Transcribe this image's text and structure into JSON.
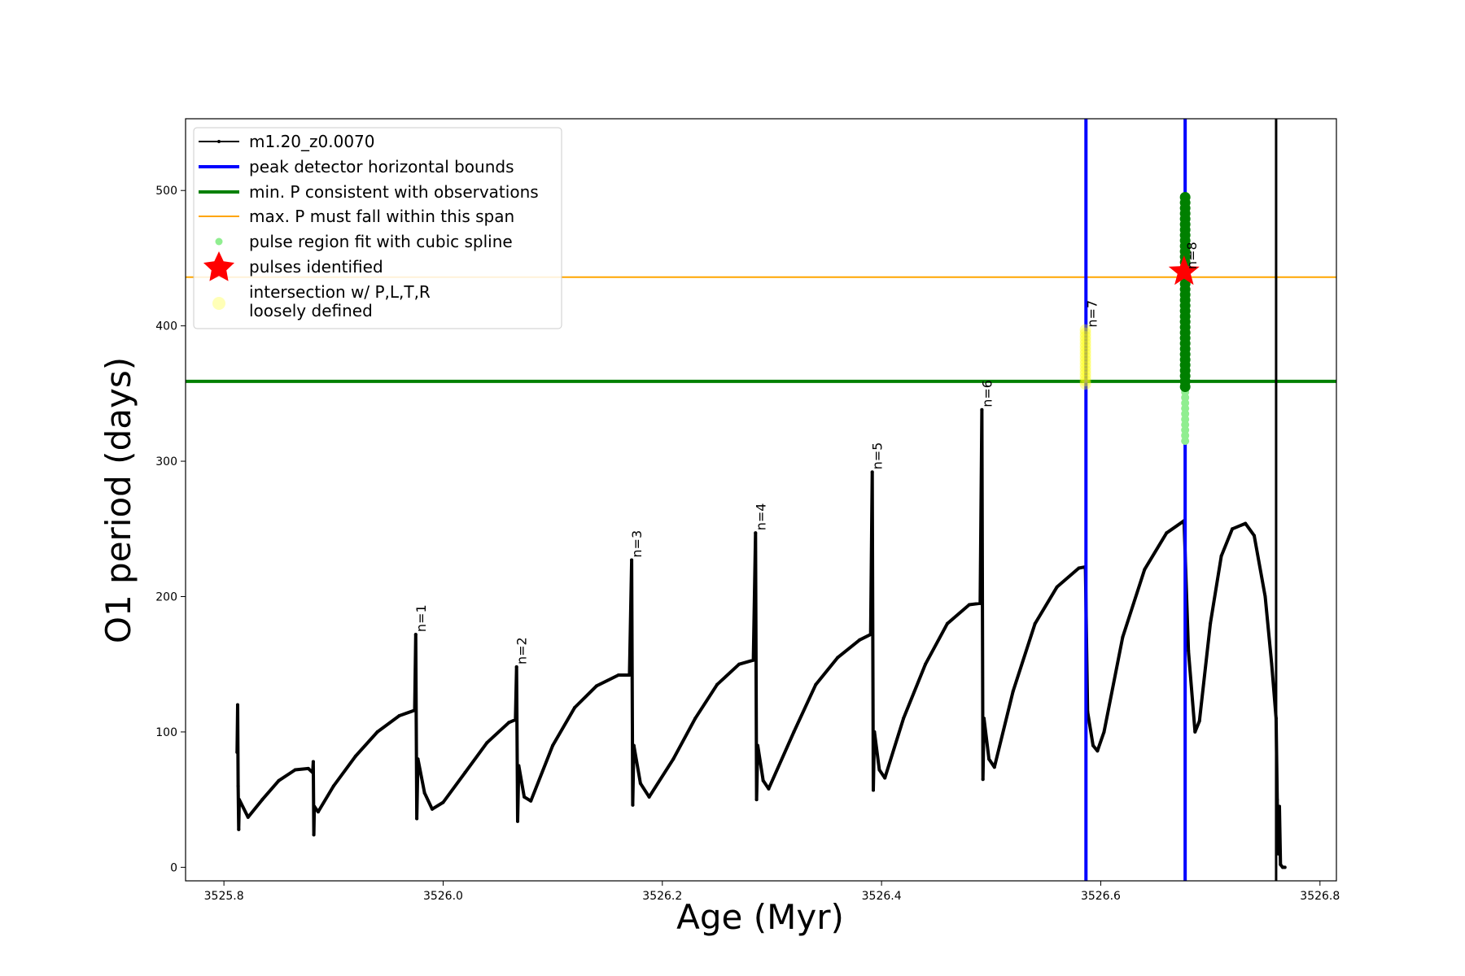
{
  "chart_data": {
    "type": "line",
    "xlabel": "Age (Myr)",
    "ylabel": "O1 period (days)",
    "xlim": [
      3525.765,
      3526.815
    ],
    "ylim": [
      -10,
      553
    ],
    "xticks": [
      3525.8,
      3526.0,
      3526.2,
      3526.4,
      3526.6,
      3526.8
    ],
    "xtick_labels": [
      "3525.8",
      "3526.0",
      "3526.2",
      "3526.4",
      "3526.6",
      "3526.8"
    ],
    "yticks": [
      0,
      100,
      200,
      300,
      400,
      500
    ],
    "ytick_labels": [
      "0",
      "100",
      "200",
      "300",
      "400",
      "500"
    ],
    "grid": false,
    "legend_position": "top-left",
    "series": [
      {
        "name": "m1.20_z0.0070",
        "color": "#000000",
        "marker": "dot",
        "points": [
          [
            3525.812,
            85
          ],
          [
            3525.8125,
            120
          ],
          [
            3525.813,
            60
          ],
          [
            3525.8135,
            28
          ],
          [
            3525.814,
            50
          ],
          [
            3525.822,
            37
          ],
          [
            3525.835,
            50
          ],
          [
            3525.85,
            64
          ],
          [
            3525.865,
            72
          ],
          [
            3525.877,
            73
          ],
          [
            3525.881,
            70
          ],
          [
            3525.8815,
            78
          ],
          [
            3525.882,
            24
          ],
          [
            3525.8825,
            45
          ],
          [
            3525.886,
            41
          ],
          [
            3525.9,
            60
          ],
          [
            3525.92,
            82
          ],
          [
            3525.94,
            100
          ],
          [
            3525.96,
            112
          ],
          [
            3525.974,
            116
          ],
          [
            3525.975,
            172
          ],
          [
            3525.976,
            36
          ],
          [
            3525.977,
            80
          ],
          [
            3525.983,
            55
          ],
          [
            3525.99,
            43
          ],
          [
            3526.0,
            48
          ],
          [
            3526.02,
            70
          ],
          [
            3526.04,
            92
          ],
          [
            3526.06,
            107
          ],
          [
            3526.066,
            109
          ],
          [
            3526.067,
            148
          ],
          [
            3526.068,
            34
          ],
          [
            3526.069,
            75
          ],
          [
            3526.074,
            52
          ],
          [
            3526.08,
            49
          ],
          [
            3526.1,
            90
          ],
          [
            3526.12,
            118
          ],
          [
            3526.14,
            134
          ],
          [
            3526.16,
            142
          ],
          [
            3526.17,
            142
          ],
          [
            3526.172,
            227
          ],
          [
            3526.173,
            46
          ],
          [
            3526.174,
            90
          ],
          [
            3526.18,
            62
          ],
          [
            3526.188,
            52
          ],
          [
            3526.21,
            80
          ],
          [
            3526.23,
            110
          ],
          [
            3526.25,
            135
          ],
          [
            3526.27,
            150
          ],
          [
            3526.283,
            153
          ],
          [
            3526.285,
            247
          ],
          [
            3526.286,
            50
          ],
          [
            3526.287,
            90
          ],
          [
            3526.292,
            64
          ],
          [
            3526.297,
            58
          ],
          [
            3526.32,
            100
          ],
          [
            3526.34,
            135
          ],
          [
            3526.36,
            155
          ],
          [
            3526.38,
            168
          ],
          [
            3526.39,
            172
          ],
          [
            3526.3915,
            292
          ],
          [
            3526.3925,
            57
          ],
          [
            3526.3935,
            100
          ],
          [
            3526.398,
            72
          ],
          [
            3526.403,
            66
          ],
          [
            3526.42,
            110
          ],
          [
            3526.44,
            150
          ],
          [
            3526.46,
            180
          ],
          [
            3526.48,
            194
          ],
          [
            3526.49,
            195
          ],
          [
            3526.4915,
            338
          ],
          [
            3526.4925,
            65
          ],
          [
            3526.4935,
            110
          ],
          [
            3526.498,
            80
          ],
          [
            3526.503,
            74
          ],
          [
            3526.52,
            130
          ],
          [
            3526.54,
            180
          ],
          [
            3526.56,
            207
          ],
          [
            3526.58,
            221
          ],
          [
            3526.586,
            222
          ],
          [
            3526.588,
            115
          ],
          [
            3526.593,
            90
          ],
          [
            3526.597,
            86
          ],
          [
            3526.603,
            100
          ],
          [
            3526.62,
            170
          ],
          [
            3526.64,
            220
          ],
          [
            3526.66,
            247
          ],
          [
            3526.676,
            256
          ],
          [
            3526.68,
            160
          ],
          [
            3526.686,
            100
          ],
          [
            3526.69,
            108
          ],
          [
            3526.7,
            180
          ],
          [
            3526.71,
            230
          ],
          [
            3526.72,
            250
          ],
          [
            3526.732,
            254
          ],
          [
            3526.74,
            245
          ],
          [
            3526.75,
            200
          ],
          [
            3526.756,
            150
          ],
          [
            3526.76,
            110
          ],
          [
            3526.761,
            50
          ],
          [
            3526.762,
            10
          ],
          [
            3526.763,
            45
          ],
          [
            3526.764,
            2
          ],
          [
            3526.766,
            0
          ],
          [
            3526.768,
            0
          ]
        ]
      }
    ],
    "vlines": [
      {
        "name": "peak detector horizontal bounds",
        "x": 3526.5865,
        "color": "#0000ff"
      },
      {
        "name": "peak detector horizontal bounds",
        "x": 3526.677,
        "color": "#0000ff"
      },
      {
        "name": "",
        "x": 3526.76,
        "color": "#000000"
      }
    ],
    "hlines": [
      {
        "name": "min. P consistent with observations",
        "y": 359,
        "color": "#008000"
      },
      {
        "name": "max. P must fall within this span",
        "y": 436,
        "color": "#ffa500"
      }
    ],
    "yellow_region": {
      "x": 3526.586,
      "y_from": 357,
      "y_to": 397,
      "color": "#ffff00"
    },
    "spline_region": {
      "x": 3526.677,
      "y_from": 315,
      "y_to": 495,
      "color": "#90ee90"
    },
    "green_points": {
      "x": 3526.677,
      "y_from": 355,
      "y_to": 495,
      "color": "#008000"
    },
    "star": {
      "x": 3526.676,
      "y": 440,
      "color": "#ff0000"
    },
    "pulse_labels": [
      {
        "text": "n=1",
        "x": 3525.975,
        "y": 172
      },
      {
        "text": "n=2",
        "x": 3526.067,
        "y": 148
      },
      {
        "text": "n=3",
        "x": 3526.172,
        "y": 227
      },
      {
        "text": "n=4",
        "x": 3526.285,
        "y": 247
      },
      {
        "text": "n=5",
        "x": 3526.3915,
        "y": 292
      },
      {
        "text": "n=6",
        "x": 3526.4915,
        "y": 338
      },
      {
        "text": "n=7",
        "x": 3526.5875,
        "y": 397
      },
      {
        "text": "n=8",
        "x": 3526.6785,
        "y": 440
      }
    ]
  },
  "legend": {
    "items": [
      {
        "label": "m1.20_z0.0070"
      },
      {
        "label": "peak detector horizontal bounds"
      },
      {
        "label": "min. P consistent with observations"
      },
      {
        "label": "max. P must fall within this span"
      },
      {
        "label": "pulse region fit with cubic spline"
      },
      {
        "label": "pulses identified"
      },
      {
        "label": "intersection w/ P,L,T,R"
      },
      {
        "label": "loosely defined"
      }
    ]
  }
}
